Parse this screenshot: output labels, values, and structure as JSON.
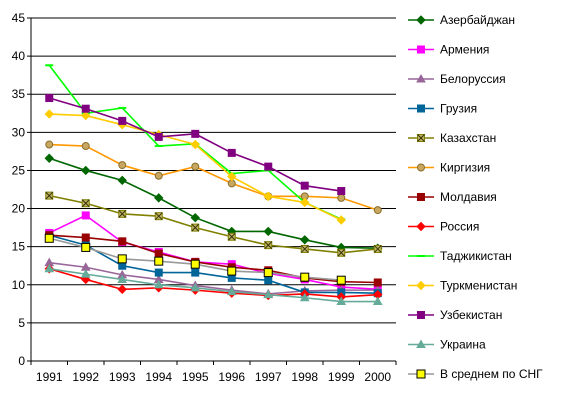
{
  "chart_data": {
    "type": "line",
    "title": "",
    "xlabel": "",
    "ylabel": "",
    "x": [
      1991,
      1992,
      1993,
      1994,
      1995,
      1996,
      1997,
      1998,
      1999,
      2000
    ],
    "x_tick_labels": [
      "1991",
      "1992",
      "1993",
      "1994",
      "1995",
      "1996",
      "1997",
      "1998",
      "1999",
      "2000"
    ],
    "ylim": [
      0,
      45
    ],
    "y_ticks": [
      0,
      5,
      10,
      15,
      20,
      25,
      30,
      35,
      40,
      45
    ],
    "y_tick_labels": [
      "0",
      "5",
      "10",
      "15",
      "20",
      "25",
      "30",
      "35",
      "40",
      "45"
    ],
    "grid": true,
    "legend_position": "right",
    "series": [
      {
        "name": "Азербайджан",
        "color": "#006600",
        "marker": "diamond",
        "values": [
          26.6,
          25.0,
          23.7,
          21.4,
          18.8,
          17.0,
          17.0,
          15.9,
          14.9,
          14.8
        ]
      },
      {
        "name": "Армения",
        "color": "#ff00ff",
        "marker": "square",
        "values": [
          16.8,
          19.1,
          15.6,
          14.3,
          13.0,
          12.7,
          11.5,
          10.7,
          9.7,
          9.4
        ]
      },
      {
        "name": "Белоруссия",
        "color": "#996699",
        "marker": "triangle",
        "values": [
          12.9,
          12.3,
          11.3,
          10.7,
          9.9,
          9.3,
          8.8,
          9.2,
          9.3,
          9.3
        ]
      },
      {
        "name": "Грузия",
        "color": "#006699",
        "marker": "square",
        "values": [
          16.5,
          15.2,
          12.5,
          11.6,
          11.6,
          10.9,
          10.6,
          9.0,
          9.0,
          8.9
        ]
      },
      {
        "name": "Казахстан",
        "color": "#808000",
        "marker": "square-x",
        "values": [
          21.7,
          20.7,
          19.3,
          19.0,
          17.5,
          16.3,
          15.2,
          14.7,
          14.2,
          14.7
        ]
      },
      {
        "name": "Киргизия",
        "color": "#ff9900",
        "marker": "circle",
        "values": [
          28.4,
          28.2,
          25.7,
          24.3,
          25.5,
          23.3,
          21.6,
          21.6,
          21.4,
          19.8
        ]
      },
      {
        "name": "Молдавия",
        "color": "#990000",
        "marker": "square",
        "values": [
          16.5,
          16.2,
          15.7,
          14.1,
          13.0,
          12.3,
          11.9,
          10.9,
          10.4,
          10.3
        ]
      },
      {
        "name": "Россия",
        "color": "#ff0000",
        "marker": "diamond",
        "values": [
          12.1,
          10.7,
          9.4,
          9.6,
          9.3,
          8.9,
          8.6,
          8.8,
          8.4,
          8.7
        ]
      },
      {
        "name": "Таджикистан",
        "color": "#00ff00",
        "marker": "dash",
        "values": [
          38.8,
          32.5,
          33.2,
          28.2,
          28.5,
          24.6,
          25.0,
          20.8,
          18.6,
          null
        ]
      },
      {
        "name": "Туркменистан",
        "color": "#ffcc00",
        "marker": "diamond",
        "values": [
          32.4,
          32.2,
          31.0,
          29.7,
          28.4,
          24.2,
          21.6,
          20.8,
          18.5,
          null
        ]
      },
      {
        "name": "Узбекистан",
        "color": "#800080",
        "marker": "square",
        "values": [
          34.5,
          33.1,
          31.5,
          29.4,
          29.8,
          27.3,
          25.5,
          23.0,
          22.3,
          null
        ]
      },
      {
        "name": "Украина",
        "color": "#66aa99",
        "marker": "triangle",
        "values": [
          12.1,
          11.4,
          10.7,
          10.0,
          9.6,
          9.1,
          8.7,
          8.3,
          7.8,
          7.8
        ]
      },
      {
        "name": "В среднем по СНГ",
        "color": "#999999",
        "marker": "square-yellow",
        "values": [
          16.1,
          14.9,
          13.4,
          13.1,
          12.7,
          11.8,
          11.6,
          11.0,
          10.6,
          null
        ]
      }
    ]
  }
}
